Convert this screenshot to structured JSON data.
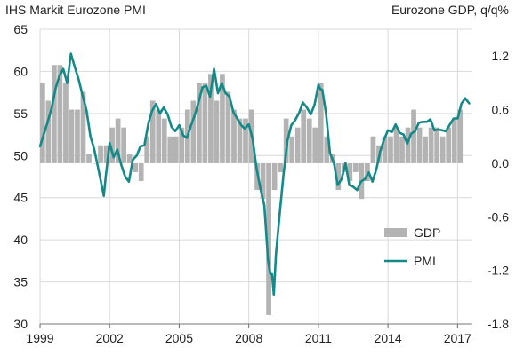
{
  "chart_data": {
    "type": "bar+line",
    "title_left": "IHS Markit Eurozone PMI",
    "title_right": "Eurozone GDP, q/q%",
    "x_ticks": [
      "1999",
      "2002",
      "2005",
      "2008",
      "2011",
      "2014",
      "2017"
    ],
    "xlim": [
      1999,
      2017.6
    ],
    "y_left": {
      "label": "PMI",
      "lim": [
        30,
        65
      ],
      "ticks": [
        "30",
        "35",
        "40",
        "45",
        "50",
        "55",
        "60",
        "65"
      ]
    },
    "y_right": {
      "label": "GDP q/q %",
      "lim": [
        -1.8,
        1.5
      ],
      "ticks": [
        "-1.8",
        "-1.2",
        "-0.6",
        "0.0",
        "0.6",
        "1.2"
      ]
    },
    "grid": true,
    "legend": {
      "position": "right",
      "items": [
        {
          "label": "GDP",
          "color": "#b3b3b3"
        },
        {
          "label": "PMI",
          "color": "#138a88"
        }
      ]
    },
    "colors": {
      "gdp": "#b3b3b3",
      "pmi": "#138a88",
      "grid": "#d9d9d9"
    },
    "series": [
      {
        "name": "GDP",
        "kind": "bar",
        "axis": "right",
        "quarters": [
          1999.0,
          1999.25,
          1999.5,
          1999.75,
          2000.0,
          2000.25,
          2000.5,
          2000.75,
          2001.0,
          2001.25,
          2001.5,
          2001.75,
          2002.0,
          2002.25,
          2002.5,
          2002.75,
          2003.0,
          2003.25,
          2003.5,
          2003.75,
          2004.0,
          2004.25,
          2004.5,
          2004.75,
          2005.0,
          2005.25,
          2005.5,
          2005.75,
          2006.0,
          2006.25,
          2006.5,
          2006.75,
          2007.0,
          2007.25,
          2007.5,
          2007.75,
          2008.0,
          2008.25,
          2008.5,
          2008.75,
          2009.0,
          2009.25,
          2009.5,
          2009.75,
          2010.0,
          2010.25,
          2010.5,
          2010.75,
          2011.0,
          2011.25,
          2011.5,
          2011.75,
          2012.0,
          2012.25,
          2012.5,
          2012.75,
          2013.0,
          2013.25,
          2013.5,
          2013.75,
          2014.0,
          2014.25,
          2014.5,
          2014.75,
          2015.0,
          2015.25,
          2015.5,
          2015.75,
          2016.0,
          2016.25,
          2016.5,
          2016.75,
          2017.0
        ],
        "values": [
          0.9,
          0.7,
          1.1,
          1.1,
          0.9,
          0.6,
          0.6,
          0.8,
          0.1,
          0.0,
          0.2,
          0.2,
          0.4,
          0.5,
          0.4,
          0.1,
          -0.1,
          -0.2,
          0.3,
          0.7,
          0.6,
          0.5,
          0.3,
          0.3,
          0.4,
          0.6,
          0.7,
          0.9,
          0.9,
          1.0,
          0.7,
          1.0,
          0.8,
          0.6,
          0.5,
          0.5,
          0.6,
          -0.3,
          -0.4,
          -1.7,
          -0.3,
          -0.1,
          0.5,
          0.3,
          0.4,
          0.6,
          0.5,
          0.4,
          0.9,
          0.3,
          0.1,
          -0.3,
          -0.1,
          -0.2,
          -0.1,
          -0.4,
          -0.2,
          0.3,
          0.2,
          0.3,
          0.3,
          0.4,
          0.3,
          0.4,
          0.6,
          0.4,
          0.3,
          0.4,
          0.4,
          0.3,
          0.4,
          0.5,
          0.6
        ]
      },
      {
        "name": "PMI",
        "kind": "line",
        "axis": "left",
        "x": [
          1999.0,
          1999.17,
          1999.33,
          1999.5,
          1999.67,
          1999.83,
          2000.0,
          2000.17,
          2000.33,
          2000.5,
          2000.67,
          2000.83,
          2001.0,
          2001.17,
          2001.33,
          2001.5,
          2001.67,
          2001.75,
          2001.83,
          2002.0,
          2002.17,
          2002.33,
          2002.5,
          2002.67,
          2002.83,
          2003.0,
          2003.17,
          2003.33,
          2003.5,
          2003.67,
          2003.83,
          2004.0,
          2004.17,
          2004.33,
          2004.5,
          2004.67,
          2004.83,
          2005.0,
          2005.17,
          2005.33,
          2005.5,
          2005.67,
          2005.83,
          2006.0,
          2006.17,
          2006.33,
          2006.5,
          2006.67,
          2006.83,
          2007.0,
          2007.17,
          2007.33,
          2007.5,
          2007.67,
          2007.83,
          2008.0,
          2008.17,
          2008.33,
          2008.5,
          2008.67,
          2008.83,
          2008.92,
          2009.0,
          2009.08,
          2009.17,
          2009.33,
          2009.5,
          2009.67,
          2009.83,
          2010.0,
          2010.17,
          2010.33,
          2010.5,
          2010.67,
          2010.83,
          2011.0,
          2011.08,
          2011.17,
          2011.33,
          2011.5,
          2011.67,
          2011.83,
          2012.0,
          2012.17,
          2012.33,
          2012.5,
          2012.67,
          2012.83,
          2013.0,
          2013.17,
          2013.33,
          2013.5,
          2013.67,
          2013.83,
          2014.0,
          2014.17,
          2014.33,
          2014.5,
          2014.67,
          2014.83,
          2015.0,
          2015.17,
          2015.33,
          2015.5,
          2015.67,
          2015.83,
          2016.0,
          2016.17,
          2016.33,
          2016.5,
          2016.67,
          2016.83,
          2017.0,
          2017.17,
          2017.33,
          2017.5
        ],
        "values": [
          51.1,
          52.6,
          54.0,
          55.6,
          58.0,
          59.4,
          60.3,
          58.6,
          62.1,
          60.5,
          59.0,
          57.2,
          55.4,
          52.3,
          50.8,
          48.6,
          46.3,
          45.2,
          47.4,
          51.5,
          49.8,
          50.7,
          48.9,
          47.5,
          46.9,
          49.5,
          50.0,
          51.1,
          51.2,
          53.8,
          55.3,
          56.1,
          55.0,
          55.7,
          54.9,
          53.4,
          52.9,
          53.6,
          52.4,
          52.1,
          53.5,
          54.8,
          56.3,
          58.1,
          58.3,
          57.0,
          60.3,
          57.4,
          58.6,
          57.4,
          57.0,
          55.2,
          54.4,
          53.6,
          53.2,
          53.7,
          51.9,
          48.5,
          46.1,
          44.1,
          37.6,
          36.0,
          35.9,
          33.5,
          38.3,
          43.1,
          47.9,
          51.8,
          53.6,
          54.2,
          55.1,
          56.3,
          55.7,
          54.9,
          56.0,
          58.4,
          57.9,
          57.8,
          55.0,
          50.3,
          49.1,
          46.5,
          47.2,
          49.1,
          46.5,
          46.3,
          45.9,
          46.9,
          47.2,
          48.0,
          46.9,
          48.4,
          50.5,
          51.9,
          53.0,
          52.8,
          53.7,
          52.7,
          52.5,
          51.4,
          52.6,
          52.9,
          53.9,
          54.0,
          54.0,
          54.3,
          53.0,
          53.1,
          53.0,
          52.9,
          53.7,
          54.4,
          54.4,
          56.2,
          56.8,
          56.2
        ]
      }
    ]
  }
}
